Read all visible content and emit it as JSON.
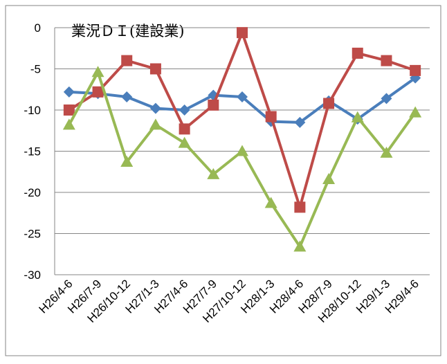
{
  "chart_data": {
    "type": "line",
    "title": "業況ＤＩ(建設業)",
    "categories": [
      "H26/4-6",
      "H26/7-9",
      "H26/10-12",
      "H27/1-3",
      "H27/4-6",
      "H27/7-9",
      "H27/10-12",
      "H28/1-3",
      "H28/4-6",
      "H28/7-9",
      "H28/10-12",
      "H29/1-3",
      "H29/4-6"
    ],
    "series": [
      {
        "color": "#4a7ebb",
        "marker": "diamond",
        "values": [
          -7.8,
          -8.0,
          -8.4,
          -9.8,
          -10.0,
          -8.2,
          -8.4,
          -11.4,
          -11.5,
          -8.9,
          -11.1,
          -8.6,
          -6.1
        ]
      },
      {
        "color": "#be4b48",
        "marker": "square",
        "values": [
          -10.0,
          -7.8,
          -4.0,
          -5.0,
          -12.3,
          -9.4,
          -0.6,
          -10.8,
          -21.8,
          -9.2,
          -3.1,
          -4.0,
          -5.2
        ]
      },
      {
        "color": "#98b954",
        "marker": "triangle",
        "values": [
          -11.8,
          -5.4,
          -16.3,
          -11.8,
          -14.0,
          -17.8,
          -15.0,
          -21.3,
          -26.6,
          -18.4,
          -10.9,
          -15.2,
          -10.3
        ]
      }
    ],
    "ylim": [
      -30,
      0
    ],
    "yticks": [
      -30,
      -25,
      -20,
      -15,
      -10,
      -5,
      0
    ],
    "grid": true
  }
}
